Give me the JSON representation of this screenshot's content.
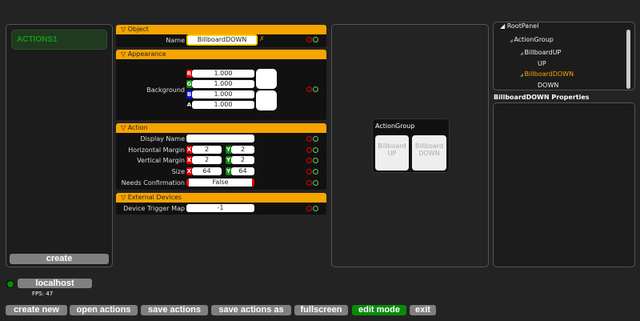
{
  "left_panel": {
    "actions": [
      {
        "label": "ACTIONS1"
      }
    ],
    "create_label": "create"
  },
  "object": {
    "header": "▽ Object",
    "name_label": "Name",
    "name_value": "BillboardDOWN"
  },
  "appearance": {
    "header": "▽ Appearance",
    "background_label": "Background",
    "channels": [
      {
        "tag": "R",
        "value": "1.000",
        "color": "#e00000"
      },
      {
        "tag": "G",
        "value": "1.000",
        "color": "#118811"
      },
      {
        "tag": "B",
        "value": "1.000",
        "color": "#1111dd"
      },
      {
        "tag": "A",
        "value": "1.000",
        "color": "#000000"
      }
    ]
  },
  "action": {
    "header": "▽ Action",
    "display_name_label": "Display Name",
    "display_name_value": "",
    "rows": [
      {
        "label": "Horizontal Margin",
        "x": "2",
        "y": "2"
      },
      {
        "label": "Vertical Margin",
        "x": "2",
        "y": "2"
      },
      {
        "label": "Size",
        "x": "64",
        "y": "64"
      }
    ],
    "x_tag": "X",
    "y_tag": "Y",
    "needs_confirmation_label": "Needs Confirmation",
    "needs_confirmation_value": "False"
  },
  "external": {
    "header": "▽ External Devices",
    "trigger_label": "Device Trigger Map",
    "trigger_value": "-1"
  },
  "preview": {
    "group_title": "ActionGroup",
    "buttons": [
      "BillboardUP",
      "BillboardDOWN"
    ]
  },
  "tree": {
    "items": [
      {
        "label": "RootPanel",
        "level": 0
      },
      {
        "label": "ActionGroup",
        "level": 1
      },
      {
        "label": "BillboardUP",
        "level": 2
      },
      {
        "label": "UP",
        "level": 3
      },
      {
        "label": "BillboardDOWN",
        "level": 2,
        "selected": true
      },
      {
        "label": "DOWN",
        "level": 3
      }
    ]
  },
  "properties_title": "BillboardDOWN Properties",
  "status": {
    "host": "localhost",
    "fps": "FPS: 47",
    "connected_color": "#0a8a0a"
  },
  "toolbar": [
    "create new",
    "open actions",
    "save actions",
    "save actions as",
    "fullscreen",
    "edit mode",
    "exit"
  ],
  "accent": "#f8a400"
}
